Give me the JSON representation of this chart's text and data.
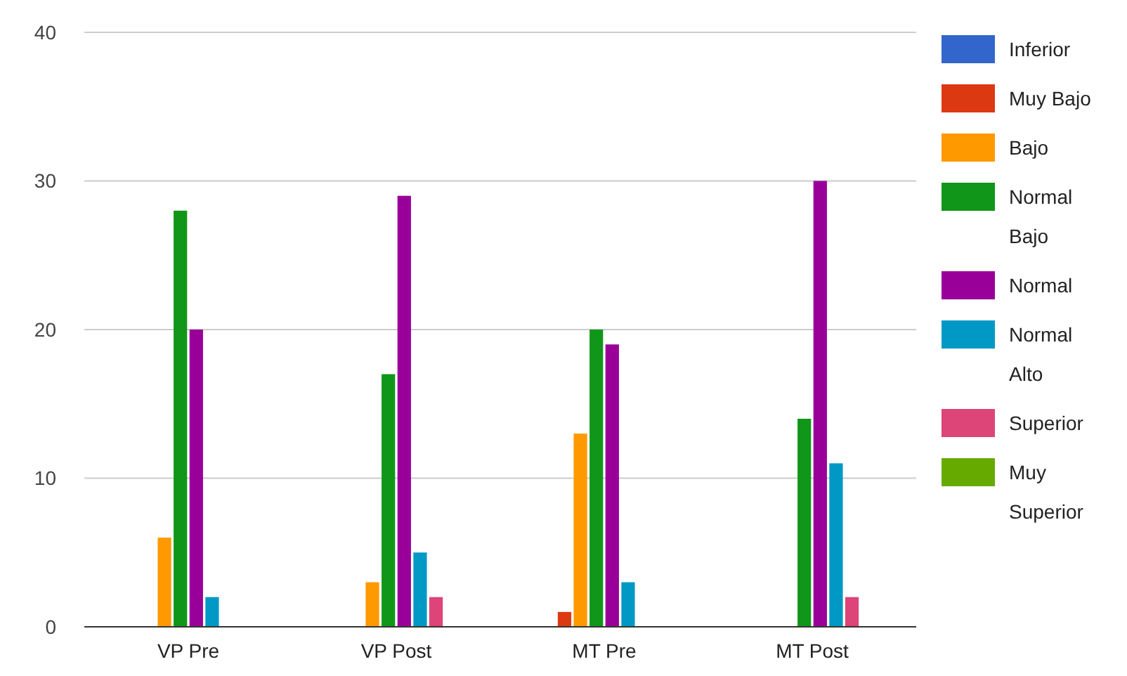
{
  "chart_data": {
    "type": "bar",
    "categories": [
      "VP Pre",
      "VP Post",
      "MT Pre",
      "MT Post"
    ],
    "series": [
      {
        "name": "Inferior",
        "color": "#3366cc",
        "values": [
          0,
          0,
          0,
          0
        ]
      },
      {
        "name": "Muy Bajo",
        "color": "#dc3912",
        "values": [
          0,
          0,
          1,
          0
        ]
      },
      {
        "name": "Bajo",
        "color": "#ff9900",
        "values": [
          6,
          3,
          13,
          0
        ]
      },
      {
        "name": "Normal Bajo",
        "color": "#109618",
        "values": [
          28,
          17,
          20,
          14
        ]
      },
      {
        "name": "Normal",
        "color": "#990099",
        "values": [
          20,
          29,
          19,
          30
        ]
      },
      {
        "name": "Normal Alto",
        "color": "#0099c6",
        "values": [
          2,
          5,
          3,
          11
        ]
      },
      {
        "name": "Superior",
        "color": "#dd4477",
        "values": [
          0,
          2,
          0,
          2
        ]
      },
      {
        "name": "Muy Superior",
        "color": "#66aa00",
        "values": [
          0,
          0,
          0,
          0
        ]
      }
    ],
    "ylim": [
      0,
      40
    ],
    "yticks": [
      0,
      10,
      20,
      30,
      40
    ],
    "grid": "y",
    "legend": "right"
  }
}
